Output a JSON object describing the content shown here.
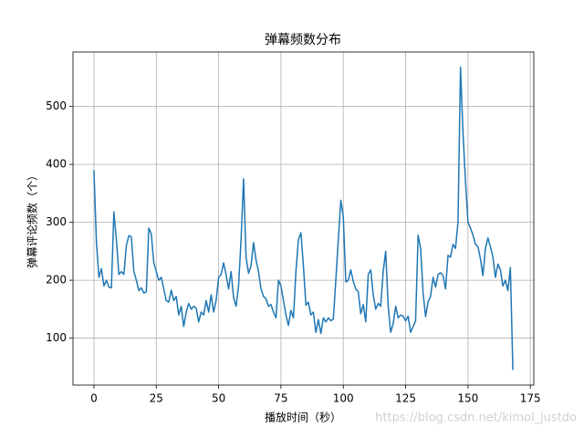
{
  "chart_data": {
    "type": "line",
    "title": "弹幕频数分布",
    "x_label": "播放时间（秒）",
    "y_label": "弹幕评论频数（个）",
    "watermark": "https://blog.csdn.net/kimol_justdo",
    "x": [
      0,
      1,
      2,
      3,
      4,
      5,
      6,
      7,
      8,
      9,
      10,
      11,
      12,
      13,
      14,
      15,
      16,
      17,
      18,
      19,
      20,
      21,
      22,
      23,
      24,
      25,
      26,
      27,
      28,
      29,
      30,
      31,
      32,
      33,
      34,
      35,
      36,
      37,
      38,
      39,
      40,
      41,
      42,
      43,
      44,
      45,
      46,
      47,
      48,
      49,
      50,
      51,
      52,
      53,
      54,
      55,
      56,
      57,
      58,
      59,
      60,
      61,
      62,
      63,
      64,
      65,
      66,
      67,
      68,
      69,
      70,
      71,
      72,
      73,
      74,
      75,
      76,
      77,
      78,
      79,
      80,
      81,
      82,
      83,
      84,
      85,
      86,
      87,
      88,
      89,
      90,
      91,
      92,
      93,
      94,
      95,
      96,
      97,
      98,
      99,
      100,
      101,
      102,
      103,
      104,
      105,
      106,
      107,
      108,
      109,
      110,
      111,
      112,
      113,
      114,
      115,
      116,
      117,
      118,
      119,
      120,
      121,
      122,
      123,
      124,
      125,
      126,
      127,
      128,
      129,
      130,
      131,
      132,
      133,
      134,
      135,
      136,
      137,
      138,
      139,
      140,
      141,
      142,
      143,
      144,
      145,
      146,
      147,
      148,
      149,
      150,
      151,
      152,
      153,
      154,
      155,
      156,
      157,
      158,
      159,
      160,
      161,
      162,
      163,
      164,
      165,
      166,
      167,
      168
    ],
    "series": [
      {
        "color": "#1f77b4",
        "values": [
          390,
          265,
          205,
          220,
          190,
          200,
          188,
          187,
          318,
          270,
          210,
          215,
          210,
          260,
          277,
          275,
          215,
          200,
          182,
          187,
          178,
          180,
          290,
          280,
          230,
          215,
          200,
          205,
          185,
          165,
          162,
          183,
          165,
          172,
          140,
          155,
          120,
          145,
          160,
          150,
          155,
          152,
          128,
          145,
          140,
          165,
          145,
          175,
          145,
          165,
          205,
          210,
          230,
          210,
          185,
          215,
          170,
          155,
          190,
          270,
          375,
          240,
          212,
          225,
          265,
          235,
          215,
          185,
          172,
          168,
          155,
          158,
          145,
          135,
          200,
          190,
          165,
          140,
          122,
          148,
          135,
          215,
          270,
          282,
          225,
          157,
          162,
          140,
          145,
          110,
          132,
          108,
          135,
          128,
          135,
          130,
          133,
          200,
          270,
          338,
          310,
          197,
          200,
          218,
          198,
          185,
          180,
          142,
          158,
          128,
          210,
          218,
          175,
          150,
          160,
          155,
          215,
          250,
          155,
          110,
          125,
          155,
          135,
          140,
          138,
          130,
          138,
          110,
          120,
          130,
          278,
          255,
          178,
          137,
          163,
          172,
          205,
          188,
          210,
          213,
          208,
          185,
          243,
          240,
          262,
          255,
          300,
          568,
          455,
          370,
          300,
          290,
          278,
          262,
          258,
          237,
          208,
          255,
          273,
          258,
          240,
          205,
          228,
          218,
          190,
          200,
          182,
          222,
          45
        ]
      }
    ],
    "xlim": [
      -8.4,
      176.4
    ],
    "ylim": [
      19,
      594
    ],
    "xticks": [
      0,
      25,
      50,
      75,
      100,
      125,
      150,
      175
    ],
    "yticks": [
      100,
      200,
      300,
      400,
      500
    ],
    "grid": true
  }
}
